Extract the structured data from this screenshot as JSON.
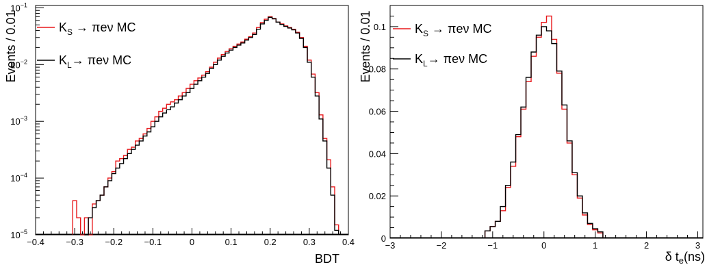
{
  "chart_data": [
    {
      "type": "line",
      "ylabel": "Events / 0.01",
      "xlabel": "BDT",
      "xlim": [
        -0.4,
        0.4
      ],
      "ylim": [
        1e-05,
        0.11
      ],
      "ylog": true,
      "xticks": [
        -0.4,
        -0.3,
        -0.2,
        -0.1,
        0,
        0.1,
        0.2,
        0.3,
        0.4
      ],
      "xticklabels": [
        "−0.4",
        "−0.3",
        "−0.2",
        "−0.1",
        "0",
        "0.1",
        "0.2",
        "0.3",
        "0.4"
      ],
      "ytick_labels": [
        {
          "value": 1e-05,
          "mantissa": "10",
          "exp": "−5"
        },
        {
          "value": 0.0001,
          "mantissa": "10",
          "exp": "−4"
        },
        {
          "value": 0.001,
          "mantissa": "10",
          "exp": "−3"
        },
        {
          "value": 0.01,
          "mantissa": "10",
          "exp": "−2"
        },
        {
          "value": 0.1,
          "mantissa": "10",
          "exp": "−1"
        }
      ],
      "legend": {
        "placement": "top-left"
      },
      "series": [
        {
          "label_main": "K",
          "label_sub": "S",
          "label_rest": " → πeν MC",
          "color": "#e8191c",
          "x": [
            -0.3,
            -0.29,
            -0.28,
            -0.27,
            -0.26,
            -0.25,
            -0.24,
            -0.23,
            -0.22,
            -0.21,
            -0.2,
            -0.19,
            -0.18,
            -0.17,
            -0.16,
            -0.15,
            -0.14,
            -0.13,
            -0.12,
            -0.11,
            -0.1,
            -0.09,
            -0.08,
            -0.07,
            -0.06,
            -0.05,
            -0.04,
            -0.03,
            -0.02,
            -0.01,
            0.0,
            0.01,
            0.02,
            0.03,
            0.04,
            0.05,
            0.06,
            0.07,
            0.08,
            0.09,
            0.1,
            0.11,
            0.12,
            0.13,
            0.14,
            0.15,
            0.16,
            0.17,
            0.18,
            0.19,
            0.2,
            0.21,
            0.22,
            0.23,
            0.24,
            0.25,
            0.26,
            0.27,
            0.28,
            0.29,
            0.3,
            0.31,
            0.32,
            0.33,
            0.34,
            0.35,
            0.36,
            0.37
          ],
          "y": [
            4e-05,
            2e-05,
            1e-05,
            2e-05,
            1e-05,
            3.5e-05,
            4e-05,
            5e-05,
            7e-05,
            0.0001,
            0.00013,
            0.0002,
            0.00022,
            0.00025,
            0.00032,
            0.00035,
            0.00045,
            0.0005,
            0.0006,
            0.00075,
            0.001,
            0.0012,
            0.0015,
            0.0017,
            0.002,
            0.0022,
            0.0024,
            0.0028,
            0.0032,
            0.0038,
            0.0045,
            0.0052,
            0.0058,
            0.0065,
            0.0075,
            0.009,
            0.011,
            0.013,
            0.015,
            0.017,
            0.019,
            0.021,
            0.023,
            0.025,
            0.028,
            0.031,
            0.036,
            0.045,
            0.055,
            0.063,
            0.07,
            0.065,
            0.056,
            0.052,
            0.048,
            0.045,
            0.042,
            0.037,
            0.03,
            0.021,
            0.012,
            0.0068,
            0.0032,
            0.0013,
            0.0005,
            0.00021,
            7e-05,
            1.5e-05
          ]
        },
        {
          "label_main": "K",
          "label_sub": "L",
          "label_rest": "→  πeν MC",
          "color": "#000000",
          "x": [
            -0.27,
            -0.26,
            -0.25,
            -0.24,
            -0.23,
            -0.22,
            -0.21,
            -0.2,
            -0.19,
            -0.18,
            -0.17,
            -0.16,
            -0.15,
            -0.14,
            -0.13,
            -0.12,
            -0.11,
            -0.1,
            -0.09,
            -0.08,
            -0.07,
            -0.06,
            -0.05,
            -0.04,
            -0.03,
            -0.02,
            -0.01,
            0.0,
            0.01,
            0.02,
            0.03,
            0.04,
            0.05,
            0.06,
            0.07,
            0.08,
            0.09,
            0.1,
            0.11,
            0.12,
            0.13,
            0.14,
            0.15,
            0.16,
            0.17,
            0.18,
            0.19,
            0.2,
            0.21,
            0.22,
            0.23,
            0.24,
            0.25,
            0.26,
            0.27,
            0.28,
            0.29,
            0.3,
            0.31,
            0.32,
            0.33,
            0.34,
            0.35,
            0.36,
            0.37
          ],
          "y": [
            1e-05,
            2e-05,
            3e-05,
            4e-05,
            5e-05,
            7e-05,
            9e-05,
            0.00012,
            0.00015,
            0.00018,
            0.00022,
            0.00027,
            0.00032,
            0.00038,
            0.00045,
            0.00055,
            0.00065,
            0.0008,
            0.001,
            0.0012,
            0.0014,
            0.0016,
            0.0018,
            0.0021,
            0.0024,
            0.0028,
            0.0032,
            0.0038,
            0.0045,
            0.0052,
            0.006,
            0.007,
            0.0085,
            0.01,
            0.012,
            0.014,
            0.016,
            0.018,
            0.02,
            0.022,
            0.024,
            0.027,
            0.03,
            0.034,
            0.042,
            0.052,
            0.06,
            0.068,
            0.064,
            0.056,
            0.051,
            0.047,
            0.044,
            0.041,
            0.036,
            0.029,
            0.02,
            0.011,
            0.006,
            0.0028,
            0.0011,
            0.00045,
            0.00015,
            5e-05,
            1.2e-05
          ]
        }
      ]
    },
    {
      "type": "line",
      "ylabel": "Events / 0.01",
      "xlabel": "δ t",
      "xlabel_sub": "e",
      "xlabel_rest": "(ns)",
      "xlim": [
        -3,
        3.1
      ],
      "ylim": [
        0,
        0.11
      ],
      "ylog": false,
      "xticks": [
        -3,
        -2,
        -1,
        0,
        1,
        2,
        3
      ],
      "xticklabels": [
        "−3",
        "−2",
        "−1",
        "0",
        "1",
        "2",
        "3"
      ],
      "yticks": [
        0,
        0.02,
        0.04,
        0.06,
        0.08,
        0.1
      ],
      "yticklabels": [
        "0",
        "0.02",
        "0.04",
        "0.06",
        "0.08",
        "0.1"
      ],
      "legend": {
        "placement": "top-left"
      },
      "series": [
        {
          "label_main": "K",
          "label_sub": "S",
          "label_rest": " → πeν MC",
          "color": "#e8191c",
          "x": [
            -1.1,
            -1.0,
            -0.9,
            -0.8,
            -0.7,
            -0.6,
            -0.5,
            -0.4,
            -0.3,
            -0.2,
            -0.1,
            0.0,
            0.1,
            0.2,
            0.3,
            0.4,
            0.5,
            0.6,
            0.7,
            0.8,
            0.9,
            1.0,
            1.1
          ],
          "y": [
            0.0035,
            0.0055,
            0.008,
            0.013,
            0.024,
            0.034,
            0.048,
            0.061,
            0.074,
            0.086,
            0.095,
            0.102,
            0.105,
            0.094,
            0.078,
            0.061,
            0.045,
            0.03,
            0.019,
            0.011,
            0.0065,
            0.004,
            0.0025
          ]
        },
        {
          "label_main": "K",
          "label_sub": "L",
          "label_rest": "→  πeν MC",
          "color": "#000000",
          "x": [
            -1.1,
            -1.0,
            -0.9,
            -0.8,
            -0.7,
            -0.6,
            -0.5,
            -0.4,
            -0.3,
            -0.2,
            -0.1,
            0.0,
            0.1,
            0.2,
            0.3,
            0.4,
            0.5,
            0.6,
            0.7,
            0.8,
            0.9,
            1.0,
            1.1
          ],
          "y": [
            0.0035,
            0.0055,
            0.008,
            0.015,
            0.025,
            0.036,
            0.049,
            0.062,
            0.076,
            0.088,
            0.096,
            0.1,
            0.098,
            0.092,
            0.079,
            0.063,
            0.046,
            0.031,
            0.02,
            0.012,
            0.007,
            0.0045,
            0.003
          ]
        }
      ]
    }
  ]
}
